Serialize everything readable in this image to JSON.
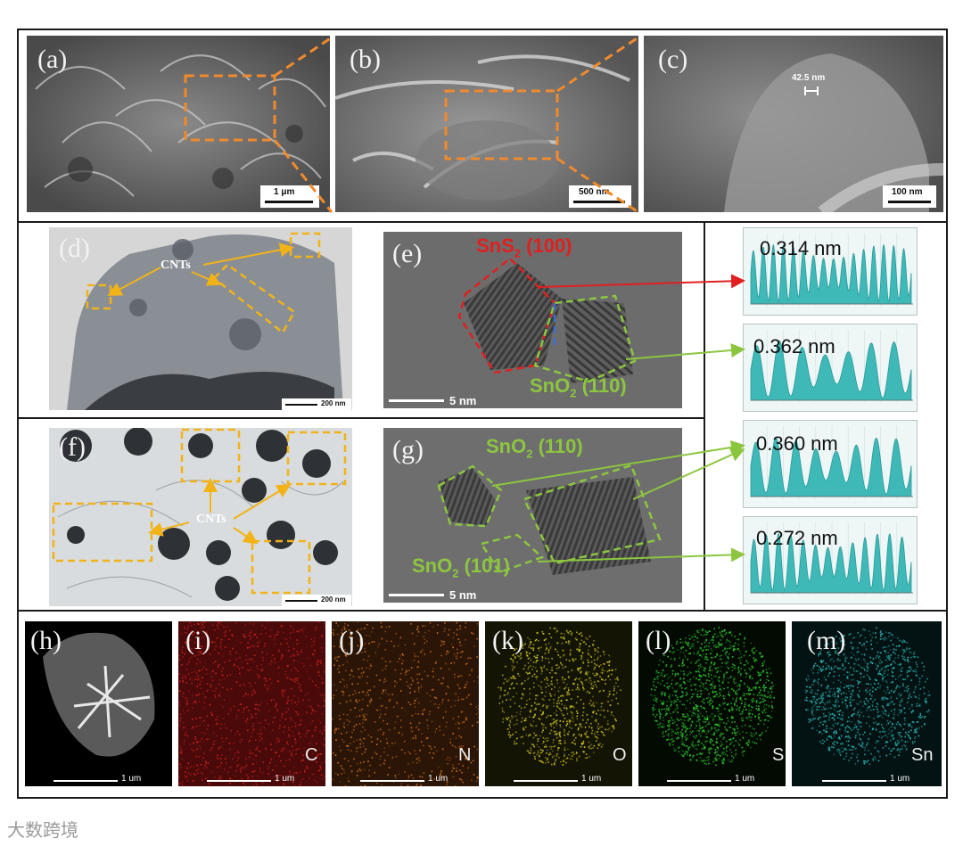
{
  "panels": {
    "a": {
      "label": "(a)",
      "scale": "1 μm"
    },
    "b": {
      "label": "(b)",
      "scale": "500 nm"
    },
    "c": {
      "label": "(c)",
      "scale": "100 nm",
      "measure": "42.5 nm"
    },
    "d": {
      "label": "(d)",
      "scale": "200 nm",
      "cnt_label": "CNTs"
    },
    "e": {
      "label": "(e)",
      "scale": "5 nm",
      "sns2_text": "SnS",
      "sns2_sub": "2",
      "sns2_plane": " (100)",
      "sno2_text": "SnO",
      "sno2_sub": "2",
      "sno2_plane": " (110)"
    },
    "f": {
      "label": "(f)",
      "scale": "200 nm",
      "cnt_label": "CNTs"
    },
    "g": {
      "label": "(g)",
      "scale": "5 nm",
      "top_text": "SnO",
      "top_sub": "2",
      "top_plane": " (110)",
      "bottom_text": "SnO",
      "bottom_sub": "2",
      "bottom_plane": " (101)"
    },
    "h": {
      "label": "(h)",
      "scale": "1 um"
    },
    "i": {
      "label": "(i)",
      "scale": "1 um",
      "element": "C"
    },
    "j": {
      "label": "(j)",
      "scale": "1 um",
      "element": "N"
    },
    "k": {
      "label": "(k)",
      "scale": "1 um",
      "element": "O"
    },
    "l": {
      "label": "(l)",
      "scale": "1 um",
      "element": "S"
    },
    "m": {
      "label": "(m)",
      "scale": "1 um",
      "element": "Sn"
    }
  },
  "lattice_spacings": [
    "0.314 nm",
    "0.362 nm",
    "0.360 nm",
    "0.272 nm"
  ],
  "colors": {
    "dashed_box": "#f08a2c",
    "tem_box": "#f2b317",
    "sns2": "#e02020",
    "sno2": "#8cc63f",
    "profile": "#3fb8b8",
    "map_c": "#c41a1a",
    "map_n": "#c96a12",
    "map_o": "#c8c21a",
    "map_s": "#2ec42e",
    "map_sn": "#2ab0b0"
  },
  "watermark": "大数跨境"
}
